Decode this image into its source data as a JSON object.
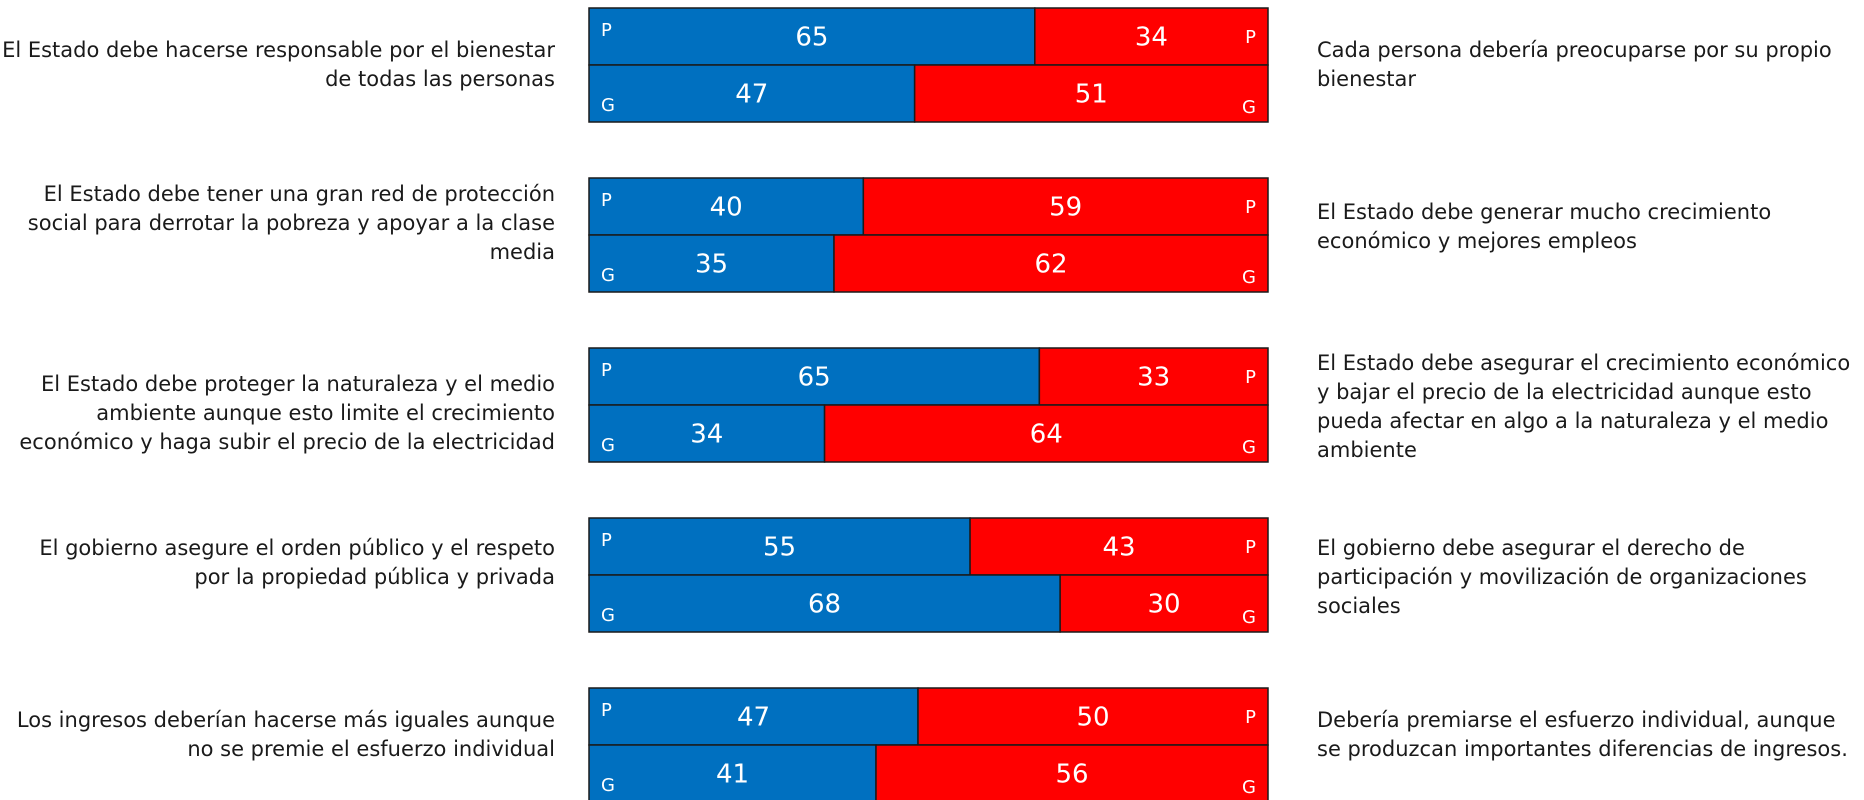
{
  "colors": {
    "left": "#0070C0",
    "right": "#FF0000",
    "border": "#1a1a1a",
    "text": "#ffffff"
  },
  "chart_data": {
    "type": "bar",
    "orientation": "horizontal",
    "stacked": true,
    "series": [
      {
        "values": [
          65,
          47,
          40,
          35,
          65,
          34,
          55,
          68,
          47,
          41
        ]
      },
      {
        "values": [
          34,
          51,
          59,
          62,
          33,
          64,
          43,
          30,
          50,
          56
        ]
      }
    ],
    "items": [
      {
        "left_statement": "El Estado debe hacerse responsable por el bienestar de todas las personas",
        "right_statement": "Cada persona debería preocuparse por su propio bienestar",
        "rows": [
          {
            "tag": "P",
            "left": 65,
            "right": 34
          },
          {
            "tag": "G",
            "left": 47,
            "right": 51
          }
        ]
      },
      {
        "left_statement": "El Estado debe tener una gran red de protección social para derrotar la pobreza y apoyar a la clase media",
        "right_statement": "El Estado debe generar mucho crecimiento económico y mejores empleos",
        "rows": [
          {
            "tag": "P",
            "left": 40,
            "right": 59
          },
          {
            "tag": "G",
            "left": 35,
            "right": 62
          }
        ]
      },
      {
        "left_statement": "El Estado debe proteger la naturaleza y el medio ambiente aunque esto limite el crecimiento económico y haga subir el precio de la electricidad",
        "right_statement": "El Estado debe asegurar el crecimiento económico y bajar el precio de la electricidad aunque esto pueda afectar en algo a la naturaleza y el medio ambiente",
        "rows": [
          {
            "tag": "P",
            "left": 65,
            "right": 33
          },
          {
            "tag": "G",
            "left": 34,
            "right": 64
          }
        ]
      },
      {
        "left_statement": "El gobierno asegure el orden público y el respeto por la propiedad pública y privada",
        "right_statement": "El gobierno debe asegurar el derecho de participación y movilización de organizaciones sociales",
        "rows": [
          {
            "tag": "P",
            "left": 55,
            "right": 43
          },
          {
            "tag": "G",
            "left": 68,
            "right": 30
          }
        ]
      },
      {
        "left_statement": "Los ingresos deberían hacerse más iguales aunque no se premie el esfuerzo individual",
        "right_statement": "Debería premiarse el esfuerzo individual, aunque se produzcan importantes diferencias de ingresos.",
        "rows": [
          {
            "tag": "P",
            "left": 47,
            "right": 50
          },
          {
            "tag": "G",
            "left": 41,
            "right": 56
          }
        ]
      }
    ]
  }
}
